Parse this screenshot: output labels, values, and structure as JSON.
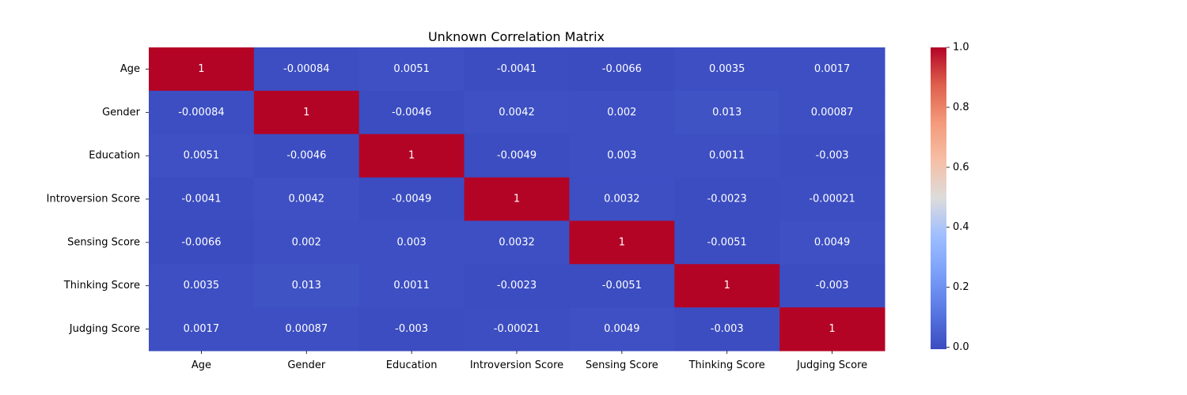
{
  "chart_data": {
    "type": "heatmap",
    "title": "Unknown Correlation Matrix",
    "xlabel": "",
    "ylabel": "",
    "variables": [
      "Age",
      "Gender",
      "Education",
      "Introversion Score",
      "Sensing Score",
      "Thinking Score",
      "Judging Score"
    ],
    "matrix": [
      [
        1,
        -0.00084,
        0.0051,
        -0.0041,
        -0.0066,
        0.0035,
        0.0017
      ],
      [
        -0.00084,
        1,
        -0.0046,
        0.0042,
        0.002,
        0.013,
        0.00087
      ],
      [
        0.0051,
        -0.0046,
        1,
        -0.0049,
        0.003,
        0.0011,
        -0.003
      ],
      [
        -0.0041,
        0.0042,
        -0.0049,
        1,
        0.0032,
        -0.0023,
        -0.00021
      ],
      [
        -0.0066,
        0.002,
        0.003,
        0.0032,
        1,
        -0.0051,
        0.0049
      ],
      [
        0.0035,
        0.013,
        0.0011,
        -0.0023,
        -0.0051,
        1,
        -0.003
      ],
      [
        0.0017,
        0.00087,
        -0.003,
        -0.00021,
        0.0049,
        -0.003,
        1
      ]
    ],
    "cell_labels": [
      [
        "1",
        "-0.00084",
        "0.0051",
        "-0.0041",
        "-0.0066",
        "0.0035",
        "0.0017"
      ],
      [
        "-0.00084",
        "1",
        "-0.0046",
        "0.0042",
        "0.002",
        "0.013",
        "0.00087"
      ],
      [
        "0.0051",
        "-0.0046",
        "1",
        "-0.0049",
        "0.003",
        "0.0011",
        "-0.003"
      ],
      [
        "-0.0041",
        "0.0042",
        "-0.0049",
        "1",
        "0.0032",
        "-0.0023",
        "-0.00021"
      ],
      [
        "-0.0066",
        "0.002",
        "0.003",
        "0.0032",
        "1",
        "-0.0051",
        "0.0049"
      ],
      [
        "0.0035",
        "0.013",
        "0.0011",
        "-0.0023",
        "-0.0051",
        "1",
        "-0.003"
      ],
      [
        "0.0017",
        "0.00087",
        "-0.003",
        "-0.00021",
        "0.0049",
        "-0.003",
        "1"
      ]
    ],
    "colormap": "coolwarm",
    "colorbar": {
      "min": -0.0066,
      "max": 1.0,
      "ticks": [
        0.0,
        0.2,
        0.4,
        0.6,
        0.8,
        1.0
      ],
      "tick_labels": [
        "0.0",
        "0.2",
        "0.4",
        "0.6",
        "0.8",
        "1.0"
      ]
    },
    "grid": false
  }
}
